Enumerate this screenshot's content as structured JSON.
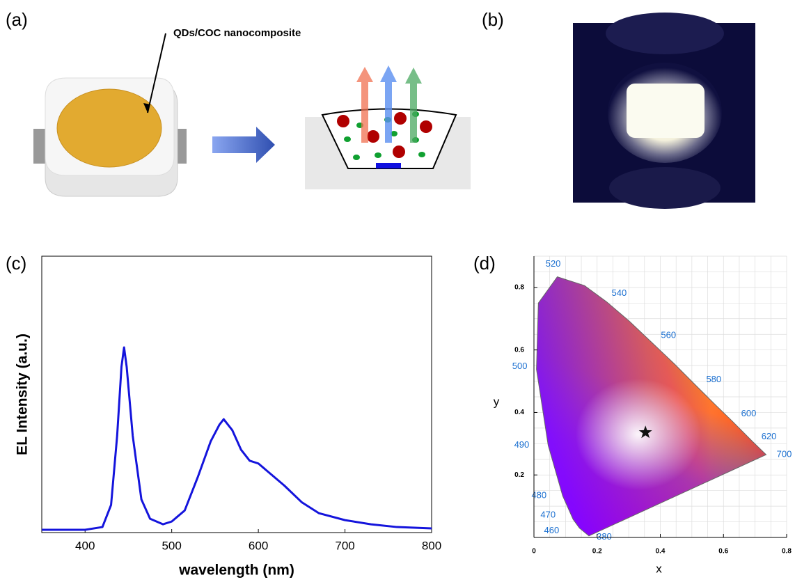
{
  "panels": {
    "a": "(a)",
    "b": "(b)",
    "c": "(c)",
    "d": "(d)"
  },
  "annotation": "QDs/COC nanocomposite",
  "chart_data": [
    {
      "type": "line",
      "xlabel": "wavelength (nm)",
      "ylabel": "EL Intensity (a.u.)",
      "x": [
        350,
        400,
        420,
        430,
        437,
        442,
        445,
        448,
        455,
        465,
        475,
        490,
        500,
        515,
        530,
        545,
        555,
        560,
        570,
        580,
        590,
        600,
        615,
        630,
        650,
        670,
        700,
        730,
        760,
        800
      ],
      "series": [
        {
          "color": "#1414dc",
          "values": [
            0.01,
            0.01,
            0.02,
            0.1,
            0.35,
            0.6,
            0.67,
            0.6,
            0.35,
            0.12,
            0.05,
            0.03,
            0.04,
            0.08,
            0.2,
            0.33,
            0.39,
            0.41,
            0.37,
            0.3,
            0.26,
            0.25,
            0.21,
            0.17,
            0.11,
            0.07,
            0.045,
            0.03,
            0.02,
            0.015
          ]
        }
      ],
      "xlim": [
        350,
        800
      ],
      "ylim": [
        0,
        1
      ],
      "xticks": [
        400,
        500,
        600,
        700,
        800
      ]
    },
    {
      "type": "scatter",
      "xlabel": "x",
      "ylabel": "y",
      "wavelength_labels": [
        "520",
        "540",
        "560",
        "580",
        "600",
        "620",
        "700",
        "500",
        "490",
        "480",
        "470",
        "460",
        "380"
      ],
      "x": [
        0.353
      ],
      "values": [
        0.336
      ],
      "marker": "star",
      "xlim": [
        0,
        0.8
      ],
      "ylim": [
        0,
        0.9
      ],
      "xticks": [
        0,
        0.2,
        0.4,
        0.6,
        0.8
      ],
      "yticks": [
        0.2,
        0.4,
        0.6,
        0.8
      ]
    }
  ]
}
